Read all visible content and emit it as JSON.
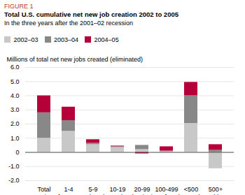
{
  "chart_data": {
    "type": "bar",
    "title": "Total U.S. cumulative net new job creation 2002 to 2005",
    "subtitle": "In the three years after the 2001–02 recession",
    "annotations": [
      {
        "text": "FIGURE 1",
        "color": "#c0392b"
      }
    ],
    "xlabel": "Size of company (employees) at beginning of each year (March)",
    "ylabel": "Millions of total net new jobs created (eliminated)",
    "categories": [
      "Total",
      "1-4",
      "5-9",
      "10-19",
      "20-99",
      "100-499",
      "<500",
      "500+"
    ],
    "series": [
      {
        "name": "2002–03",
        "color": "#c8c8c8",
        "values": [
          1.0,
          1.5,
          0.55,
          0.35,
          0.2,
          0.05,
          2.05,
          -1.15
        ]
      },
      {
        "name": "2003–04",
        "color": "#888888",
        "values": [
          1.8,
          0.75,
          0.1,
          0.05,
          0.3,
          0.05,
          1.95,
          0.15
        ]
      },
      {
        "name": "2004–05",
        "color": "#b5003a",
        "values": [
          1.2,
          0.95,
          0.25,
          0.05,
          -0.1,
          0.3,
          0.95,
          0.4
        ]
      }
    ],
    "stacked": true,
    "ylim": [
      -2.0,
      6.0
    ],
    "yticks": [
      {
        "value": -2.0,
        "label": "-2.0"
      },
      {
        "value": -1.0,
        "label": "-1.0"
      },
      0,
      {
        "value": 1.0,
        "label": "1.0"
      },
      {
        "value": 2.0,
        "label": "2.0"
      },
      {
        "value": 3.0,
        "label": "3.0"
      },
      {
        "value": 4.0,
        "label": "4.0"
      },
      {
        "value": 5.0,
        "label": "5.0"
      },
      {
        "value": 6.0,
        "label": "6.0"
      }
    ],
    "grid": true,
    "legend": "top"
  }
}
